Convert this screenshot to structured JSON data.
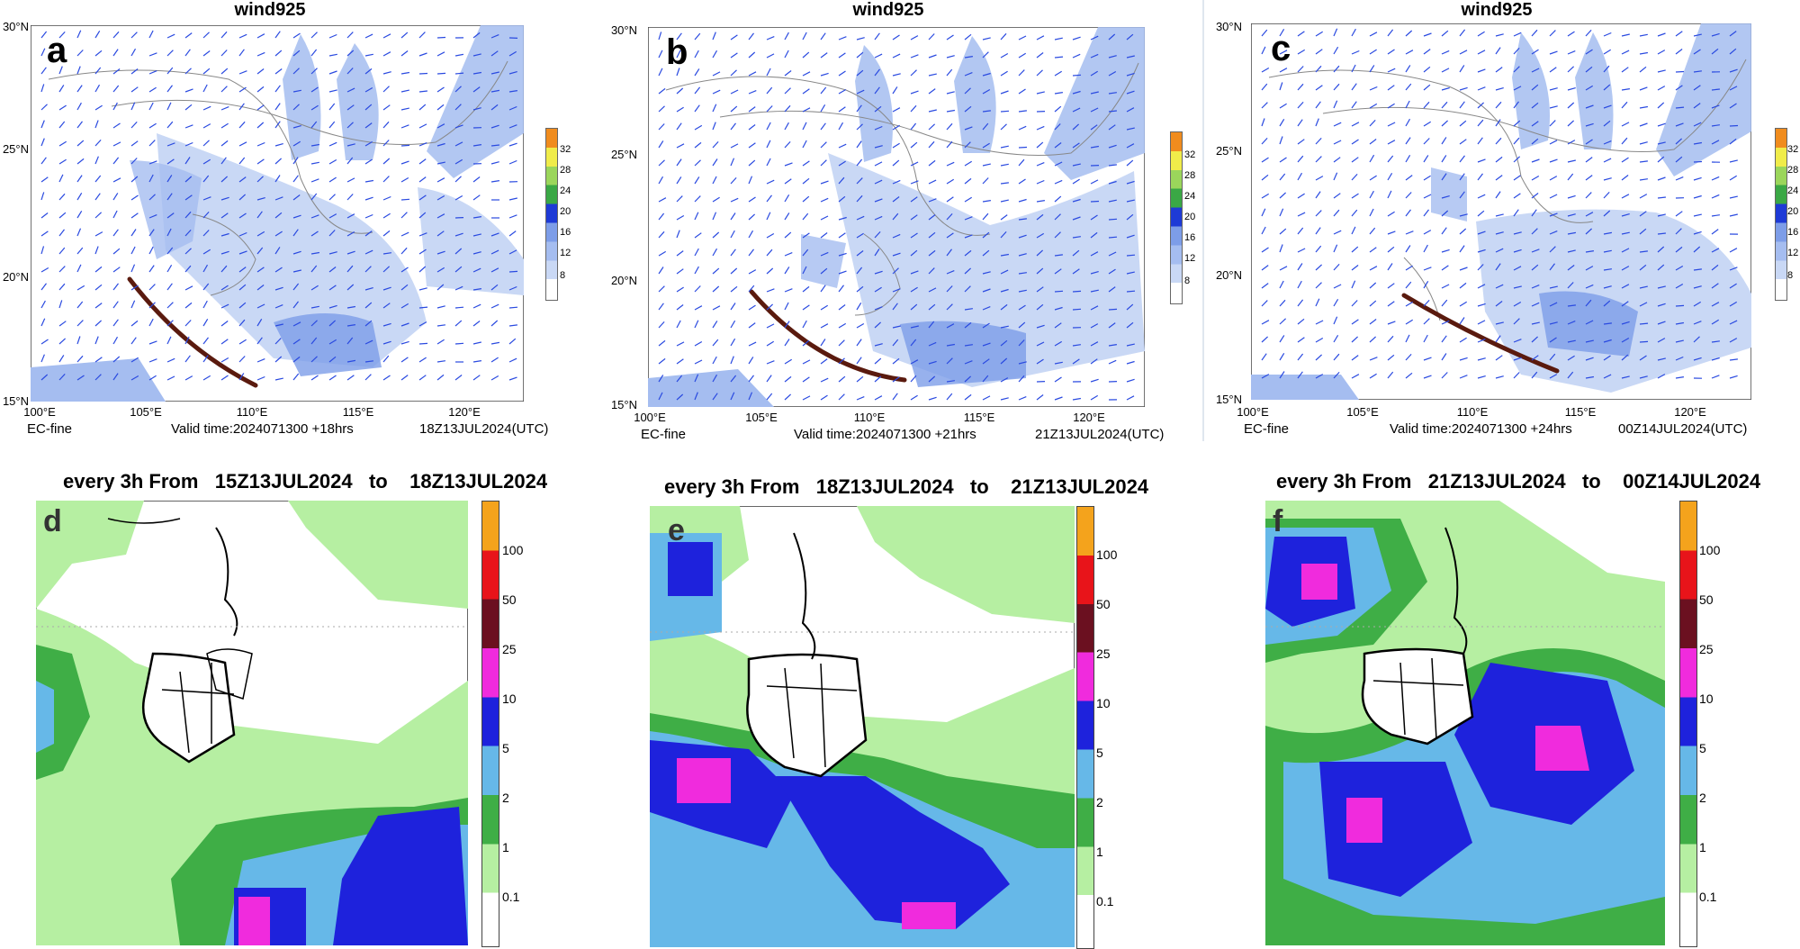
{
  "colors": {
    "wind_8": "#c9d8f5",
    "wind_12": "#a5bdf0",
    "wind_16": "#7d9de8",
    "wind_20": "#3aa845",
    "wind_24": "#9bd65b",
    "wind_28": "#f0ec4a",
    "wind_32": "#f08c1e",
    "rain_0": "#ffffff",
    "rain_01": "#b6efa2",
    "rain_1": "#3fae46",
    "rain_2": "#66b8e8",
    "rain_5": "#1e22dc",
    "rain_10": "#f02bdd",
    "rain_25": "#6b1020",
    "rain_50": "#e8141a",
    "rain_100": "#f4a31c",
    "trough": "#5a1a0e",
    "barb": "#2a4ae0"
  },
  "top_panels": [
    {
      "title": "wind925",
      "letter": "a",
      "model": "EC-fine",
      "valid": "Valid time:2024071300 +18hrs",
      "stamp": "18Z13JUL2024(UTC)"
    },
    {
      "title": "wind925",
      "letter": "b",
      "model": "EC-fine",
      "valid": "Valid time:2024071300 +21hrs",
      "stamp": "21Z13JUL2024(UTC)"
    },
    {
      "title": "wind925",
      "letter": "c",
      "model": "EC-fine",
      "valid": "Valid time:2024071300 +24hrs",
      "stamp": "00Z14JUL2024(UTC)"
    }
  ],
  "lat_labels": [
    "30°N",
    "25°N",
    "20°N",
    "15°N"
  ],
  "lon_labels": [
    "100°E",
    "105°E",
    "110°E",
    "115°E",
    "120°E"
  ],
  "wind_colorbar": [
    "32",
    "28",
    "24",
    "20",
    "16",
    "12",
    "8"
  ],
  "bottom_panels": [
    {
      "title": "every 3h From   15Z13JUL2024   to    18Z13JUL2024",
      "letter": "d"
    },
    {
      "title": "every 3h From   18Z13JUL2024   to    21Z13JUL2024",
      "letter": "e"
    },
    {
      "title": "every 3h From   21Z13JUL2024   to    00Z14JUL2024",
      "letter": "f"
    }
  ],
  "rain_colorbar": [
    "100",
    "50",
    "25",
    "10",
    "5",
    "2",
    "1",
    "0.1"
  ]
}
